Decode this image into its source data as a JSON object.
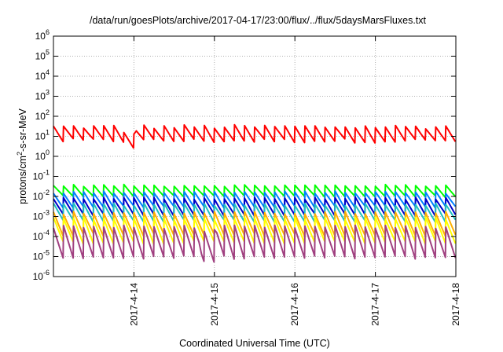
{
  "chart_data": {
    "type": "line",
    "title": "/data/run/goesPlots/archive/2017-04-17/23:00/flux/../flux/5daysMarsFluxes.txt",
    "xlabel": "Coordinated Universal Time (UTC)",
    "ylabel": "protons/cm2-s-sr-MeV",
    "ylabel_parts": [
      "protons/cm",
      "2",
      "-s-sr-MeV"
    ],
    "xscale": "time",
    "yscale": "log",
    "xlim": [
      "2017-04-13T00:00",
      "2017-04-18T00:00"
    ],
    "ylim_exponents": [
      -6,
      6
    ],
    "y_tick_base": "10",
    "y_tick_exponents": [
      "-6",
      "-5",
      "-4",
      "-3",
      "-2",
      "-1",
      "0",
      "1",
      "2",
      "3",
      "4",
      "5",
      "6"
    ],
    "x_ticks": [
      {
        "at": "2017-04-14T00:00",
        "label": "2017-4-14"
      },
      {
        "at": "2017-04-15T00:00",
        "label": "2017-4-15"
      },
      {
        "at": "2017-04-16T00:00",
        "label": "2017-4-16"
      },
      {
        "at": "2017-04-17T00:00",
        "label": "2017-4-17"
      },
      {
        "at": "2017-04-18T00:00",
        "label": "2017-4-18"
      }
    ],
    "grid": true,
    "legend": "none",
    "sawtooth_period_hours": 3,
    "series": [
      {
        "color": "#ff0000",
        "width": 2,
        "high": 30,
        "low": 6,
        "noise": 0.25,
        "dips": [
          {
            "from": "2017-04-13T21:00",
            "to": "2017-04-14T00:00",
            "factor": 0.5
          }
        ]
      },
      {
        "color": "#00ff00",
        "width": 2,
        "high": 0.035,
        "low": 0.01,
        "noise": 0.12
      },
      {
        "color": "#0080ff",
        "width": 2,
        "high": 0.016,
        "low": 0.003,
        "noise": 0.15
      },
      {
        "color": "#0000c8",
        "width": 2,
        "high": 0.008,
        "low": 0.0012,
        "noise": 0.15
      },
      {
        "color": "#20c0c0",
        "width": 2,
        "high": 0.004,
        "low": 0.0006,
        "noise": 0.15
      },
      {
        "color": "#ffb000",
        "width": 2,
        "high": 0.0015,
        "low": 0.00012,
        "noise": 0.18
      },
      {
        "color": "#ffff00",
        "width": 2,
        "high": 0.0008,
        "low": 5e-05,
        "noise": 0.18
      },
      {
        "color": "#a04080",
        "width": 2,
        "high": 0.0003,
        "low": 9e-06,
        "noise": 0.2,
        "dips": [
          {
            "from": "2017-04-14T20:00",
            "to": "2017-04-15T00:00",
            "factor": 0.6
          }
        ]
      }
    ]
  }
}
